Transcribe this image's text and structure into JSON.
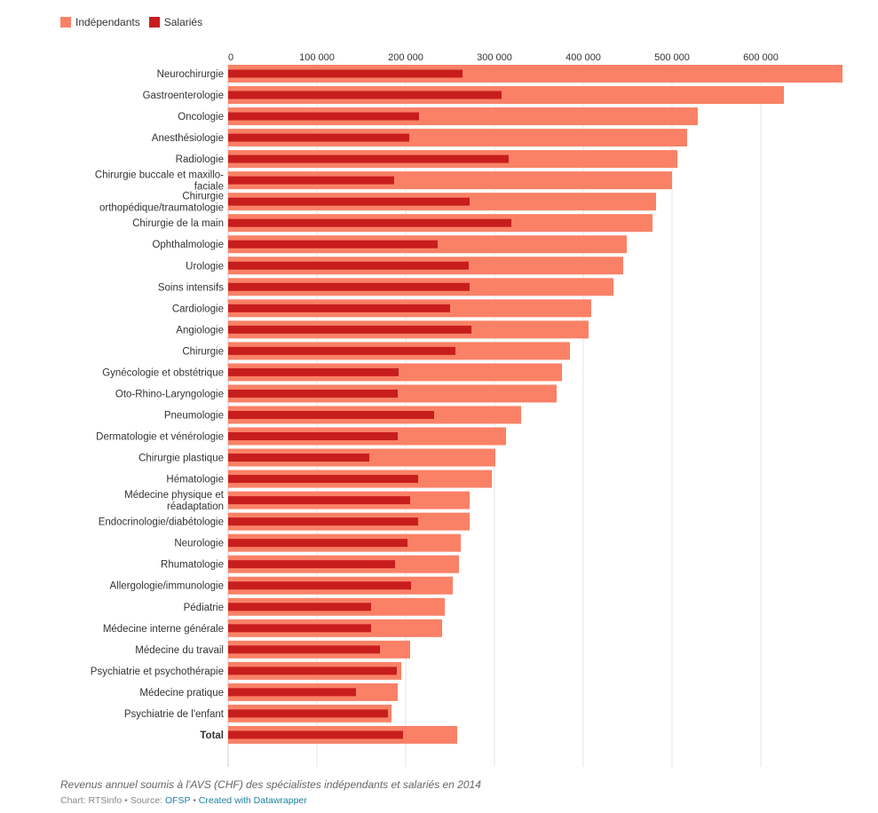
{
  "chart_data": {
    "type": "bar",
    "orientation": "horizontal",
    "categories": [
      "Neurochirurgie",
      "Gastroenterologie",
      "Oncologie",
      "Anesthésiologie",
      "Radiologie",
      "Chirurgie buccale et maxillo-faciale",
      "Chirurgie orthopédique/traumatologie",
      "Chirurgie de la main",
      "Ophthalmologie",
      "Urologie",
      "Soins intensifs",
      "Cardiologie",
      "Angiologie",
      "Chirurgie",
      "Gynécologie et obstétrique",
      "Oto-Rhino-Laryngologie",
      "Pneumologie",
      "Dermatologie et vénérologie",
      "Chirurgie plastique",
      "Hématologie",
      "Médecine physique et réadaptation",
      "Endocrinologie/diabétologie",
      "Neurologie",
      "Rhumatologie",
      "Allergologie/immunologie",
      "Pédiatrie",
      "Médecine interne générale",
      "Médecine du travail",
      "Psychiatrie et psychothérapie",
      "Médecine pratique",
      "Psychiatrie de l'enfant",
      "Total"
    ],
    "category_lines": [
      [
        "Neurochirurgie"
      ],
      [
        "Gastroenterologie"
      ],
      [
        "Oncologie"
      ],
      [
        "Anesthésiologie"
      ],
      [
        "Radiologie"
      ],
      [
        "Chirurgie buccale et maxillo-",
        "faciale"
      ],
      [
        "Chirurgie",
        "orthopédique/traumatologie"
      ],
      [
        "Chirurgie de la main"
      ],
      [
        "Ophthalmologie"
      ],
      [
        "Urologie"
      ],
      [
        "Soins intensifs"
      ],
      [
        "Cardiologie"
      ],
      [
        "Angiologie"
      ],
      [
        "Chirurgie"
      ],
      [
        "Gynécologie et obstétrique"
      ],
      [
        "Oto-Rhino-Laryngologie"
      ],
      [
        "Pneumologie"
      ],
      [
        "Dermatologie et vénérologie"
      ],
      [
        "Chirurgie plastique"
      ],
      [
        "Hématologie"
      ],
      [
        "Médecine physique et",
        "réadaptation"
      ],
      [
        "Endocrinologie/diabétologie"
      ],
      [
        "Neurologie"
      ],
      [
        "Rhumatologie"
      ],
      [
        "Allergologie/immunologie"
      ],
      [
        "Pédiatrie"
      ],
      [
        "Médecine interne générale"
      ],
      [
        "Médecine du travail"
      ],
      [
        "Psychiatrie et psychothérapie"
      ],
      [
        "Médecine pratique"
      ],
      [
        "Psychiatrie de l'enfant"
      ],
      [
        "Total"
      ]
    ],
    "bold_categories": [
      "Total"
    ],
    "series": [
      {
        "name": "Indépendants",
        "color": "#fa8166",
        "values": [
          692000,
          626000,
          529000,
          517000,
          506000,
          500000,
          482000,
          478000,
          449000,
          445000,
          434000,
          409000,
          406000,
          385000,
          376000,
          370000,
          330000,
          313000,
          301000,
          297000,
          272000,
          272000,
          262000,
          260000,
          253000,
          244000,
          241000,
          205000,
          195000,
          191000,
          184000,
          258000
        ]
      },
      {
        "name": "Salariés",
        "color": "#c71e1d",
        "values": [
          264000,
          308000,
          215000,
          204000,
          316000,
          187000,
          272000,
          319000,
          236000,
          271000,
          272000,
          250000,
          274000,
          256000,
          192000,
          191000,
          232000,
          191000,
          159000,
          214000,
          205000,
          214000,
          202000,
          188000,
          206000,
          161000,
          161000,
          171000,
          190000,
          144000,
          180000,
          197000
        ]
      }
    ],
    "ticks": [
      "0",
      "100 000",
      "200 000",
      "300 000",
      "400 000",
      "500 000",
      "600 000"
    ],
    "tick_values": [
      0,
      100000,
      200000,
      300000,
      400000,
      500000,
      600000
    ],
    "xlim": [
      0,
      692000
    ],
    "grid": true,
    "axis_position": "top",
    "legend_position": "top-left",
    "caption": "Revenus annuel soumis à l'AVS (CHF) des spécialistes indépendants et salariés en 2014"
  },
  "legend": {
    "items": [
      {
        "label": "Indépendants",
        "color": "#fa8166"
      },
      {
        "label": "Salariés",
        "color": "#c71e1d"
      }
    ]
  },
  "footer": {
    "caption": "Revenus annuel soumis à l'AVS (CHF) des spécialistes indépendants et salariés en 2014",
    "credit_prefix": "Chart: RTSinfo • Source: ",
    "source_link": "OFSP",
    "separator": " • ",
    "datawrapper_link": "Created with Datawrapper"
  }
}
